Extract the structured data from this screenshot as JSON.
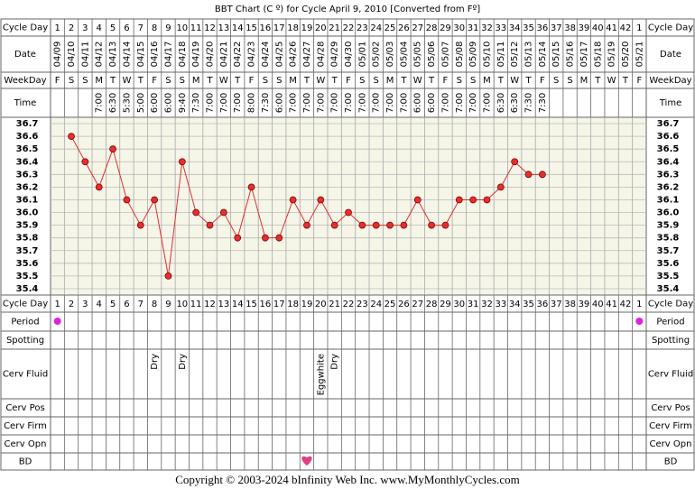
{
  "chart_data": {
    "type": "line",
    "title": "BBT Chart (C º) for Cycle April 9, 2010  [Converted from Fº]",
    "row_labels": {
      "cycle_day": "Cycle Day",
      "date": "Date",
      "weekday": "WeekDay",
      "time": "Time",
      "period": "Period",
      "spotting": "Spotting",
      "cerv_fluid": "Cerv Fluid",
      "cerv_pos": "Cerv Pos",
      "cerv_firm": "Cerv Firm",
      "cerv_opn": "Cerv Opn",
      "bd": "BD"
    },
    "categories": [
      1,
      2,
      3,
      4,
      5,
      6,
      7,
      8,
      9,
      10,
      11,
      12,
      13,
      14,
      15,
      16,
      17,
      18,
      19,
      20,
      21,
      22,
      23,
      24,
      25,
      26,
      27,
      28,
      29,
      30,
      31,
      32,
      33,
      34,
      35,
      36,
      37,
      38,
      39,
      40,
      41,
      42,
      1
    ],
    "dates": [
      "04/09",
      "04/10",
      "04/11",
      "04/12",
      "04/13",
      "04/14",
      "04/15",
      "04/16",
      "04/17",
      "04/18",
      "04/19",
      "04/20",
      "04/21",
      "04/22",
      "04/23",
      "04/24",
      "04/25",
      "04/26",
      "04/27",
      "04/28",
      "04/29",
      "04/30",
      "05/01",
      "05/02",
      "05/03",
      "05/04",
      "05/05",
      "05/06",
      "05/07",
      "05/08",
      "05/09",
      "05/10",
      "05/11",
      "05/12",
      "05/13",
      "05/14",
      "05/15",
      "05/16",
      "05/17",
      "05/18",
      "05/19",
      "05/20",
      "05/21"
    ],
    "weekdays": [
      "F",
      "S",
      "S",
      "M",
      "T",
      "W",
      "T",
      "F",
      "S",
      "S",
      "M",
      "T",
      "W",
      "T",
      "F",
      "S",
      "S",
      "M",
      "T",
      "W",
      "T",
      "F",
      "S",
      "S",
      "M",
      "T",
      "W",
      "T",
      "F",
      "S",
      "S",
      "M",
      "T",
      "W",
      "T",
      "F",
      "S",
      "S",
      "M",
      "T",
      "W",
      "T",
      "F"
    ],
    "times": [
      null,
      null,
      null,
      "7:00",
      "6:30",
      "5:30",
      "5:00",
      "6:00",
      "6:00",
      "9:40",
      "7:30",
      "7:00",
      "7:00",
      "7:00",
      "8:00",
      "7:30",
      "6:00",
      "7:00",
      "7:00",
      "7:00",
      "7:00",
      "7:00",
      "7:00",
      "7:00",
      "7:00",
      "7:00",
      "6:00",
      "6:00",
      "7:00",
      "7:00",
      "7:00",
      "7:00",
      "6:30",
      "6:30",
      "7:30",
      "7:30",
      null,
      null,
      null,
      null,
      null,
      null,
      null
    ],
    "values": [
      null,
      36.6,
      36.4,
      36.2,
      36.5,
      36.1,
      35.9,
      36.1,
      35.5,
      36.4,
      36.0,
      35.9,
      36.0,
      35.8,
      36.2,
      35.8,
      35.8,
      36.1,
      35.9,
      36.1,
      35.9,
      36.0,
      35.9,
      35.9,
      35.9,
      35.9,
      36.1,
      35.9,
      35.9,
      36.1,
      36.1,
      36.1,
      36.2,
      36.4,
      36.3,
      36.3,
      null,
      null,
      null,
      null,
      null,
      null,
      null
    ],
    "color": "#e03030",
    "ylim": [
      35.35,
      36.75
    ],
    "yticks": [
      36.7,
      36.6,
      36.5,
      36.4,
      36.3,
      36.2,
      36.1,
      {
        "value": 36.0,
        "label": "36.0"
      },
      35.9,
      35.8,
      35.7,
      35.6,
      35.5,
      35.4
    ],
    "grid": true,
    "period": [
      true,
      false,
      false,
      false,
      false,
      false,
      false,
      false,
      false,
      false,
      false,
      false,
      false,
      false,
      false,
      false,
      false,
      false,
      false,
      false,
      false,
      false,
      false,
      false,
      false,
      false,
      false,
      false,
      false,
      false,
      false,
      false,
      false,
      false,
      false,
      false,
      false,
      false,
      false,
      false,
      false,
      false,
      true
    ],
    "cerv_fluid": [
      null,
      null,
      null,
      null,
      null,
      null,
      null,
      "Dry",
      null,
      "Dry",
      null,
      null,
      null,
      null,
      null,
      null,
      null,
      null,
      null,
      "Eggwhite",
      "Dry",
      null,
      null,
      null,
      null,
      null,
      null,
      null,
      null,
      null,
      null,
      null,
      null,
      null,
      null,
      null,
      null,
      null,
      null,
      null,
      null,
      null,
      null
    ],
    "bd": [
      false,
      false,
      false,
      false,
      false,
      false,
      false,
      false,
      false,
      false,
      false,
      false,
      false,
      false,
      false,
      false,
      false,
      false,
      true,
      false,
      false,
      false,
      false,
      false,
      false,
      false,
      false,
      false,
      false,
      false,
      false,
      false,
      false,
      false,
      false,
      false,
      false,
      false,
      false,
      false,
      false,
      false,
      false
    ],
    "footer": "Copyright © 2003-2024 bInfinity Web Inc.      www.MyMonthlyCycles.com"
  }
}
